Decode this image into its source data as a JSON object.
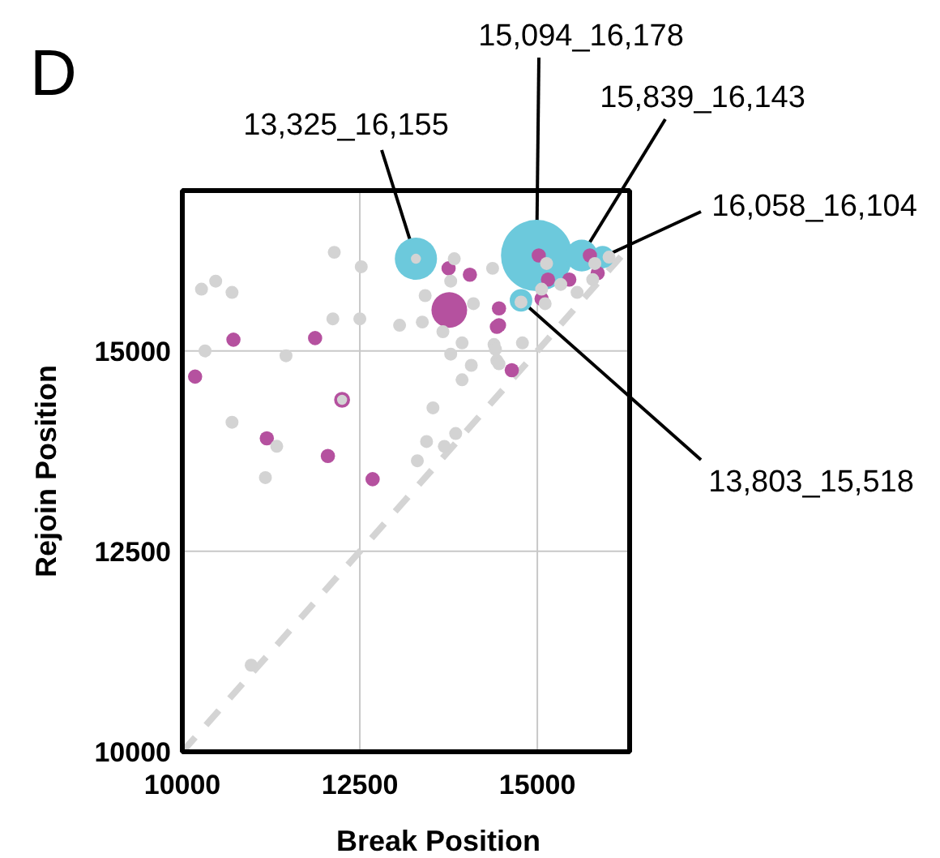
{
  "chart_data": {
    "type": "bubble",
    "title": "D",
    "xlabel": "Break Position",
    "ylabel": "Rejoin Position",
    "xlim": [
      10000,
      16300
    ],
    "ylim": [
      10000,
      17000
    ],
    "xticks": [
      10000,
      12500,
      15000
    ],
    "yticks": [
      10000,
      12500,
      15000
    ],
    "grid": true,
    "series": [
      {
        "type": "line",
        "line_style": "dashed",
        "color": "#d4d4d4",
        "x": [
          10000,
          16300
        ],
        "values": [
          10000,
          16300
        ]
      },
      {
        "color": "#6cc9dc",
        "x": [
          13290,
          14990,
          15625,
          15920,
          14770
        ],
        "values": [
          16150,
          16190,
          16190,
          16170,
          15630
        ],
        "sizes": [
          0.35,
          1,
          0.2,
          0.1,
          0.1
        ]
      },
      {
        "color": "#b5519f",
        "x": [
          10720,
          11870,
          10180,
          12250,
          11190,
          12050,
          14050,
          13750,
          14430,
          12680,
          13760,
          14460,
          14460,
          14640,
          15020,
          15150,
          15060,
          15450,
          15850,
          15740
        ],
        "values": [
          15140,
          15160,
          14680,
          14390,
          13910,
          13690,
          15950,
          16030,
          15300,
          13400,
          15510,
          15530,
          15320,
          14760,
          16190,
          15890,
          15650,
          15890,
          15970,
          16190
        ],
        "sizes": [
          0.04,
          0.04,
          0.04,
          0.05,
          0.04,
          0.04,
          0.04,
          0.04,
          0.04,
          0.04,
          0.25,
          0.04,
          0.04,
          0.04,
          0.04,
          0.04,
          0.04,
          0.04,
          0.04,
          0.04
        ]
      },
      {
        "color": "#d3d3d3",
        "x": [
          12140,
          12520,
          10270,
          10470,
          10700,
          12120,
          12500,
          13060,
          13380,
          13420,
          11460,
          10320,
          10700,
          11330,
          13530,
          13440,
          13690,
          13850,
          13940,
          13780,
          14070,
          13940,
          13670,
          14370,
          13830,
          13780,
          14100,
          14390,
          14430,
          11170,
          13310,
          10970,
          14410,
          14460,
          14790,
          14770,
          15110,
          15060,
          15330,
          15560,
          15130,
          15810,
          16010,
          15780,
          12250,
          13290
        ],
        "values": [
          16230,
          16050,
          15770,
          15870,
          15730,
          15400,
          15400,
          15320,
          15360,
          15690,
          14940,
          15000,
          14110,
          13810,
          14290,
          13870,
          13810,
          13970,
          14640,
          14960,
          14820,
          15100,
          15240,
          16030,
          16150,
          15870,
          15590,
          15080,
          14880,
          13420,
          13630,
          11080,
          15020,
          14840,
          15100,
          15610,
          15590,
          15770,
          15830,
          15730,
          16090,
          16090,
          16170,
          15890,
          14390,
          16150
        ],
        "sizes": [
          0.033,
          0.033,
          0.033,
          0.033,
          0.033,
          0.033,
          0.033,
          0.033,
          0.033,
          0.033,
          0.033,
          0.033,
          0.033,
          0.033,
          0.033,
          0.033,
          0.033,
          0.033,
          0.033,
          0.033,
          0.033,
          0.033,
          0.033,
          0.033,
          0.033,
          0.033,
          0.033,
          0.033,
          0.033,
          0.033,
          0.033,
          0.033,
          0.033,
          0.033,
          0.033,
          0.033,
          0.033,
          0.033,
          0.033,
          0.033,
          0.033,
          0.033,
          0.033,
          0.033,
          0.02,
          0.02
        ]
      }
    ],
    "annotations": [
      {
        "text": "13,325_16,155",
        "x": 13290,
        "y": 16150
      },
      {
        "text": "15,094_16,178",
        "x": 14990,
        "y": 16190
      },
      {
        "text": "15,839_16,143",
        "x": 15625,
        "y": 16190
      },
      {
        "text": "16,058_16,104",
        "x": 15920,
        "y": 16170
      },
      {
        "text": "13,803_15,518",
        "x": 14770,
        "y": 15630
      }
    ]
  }
}
